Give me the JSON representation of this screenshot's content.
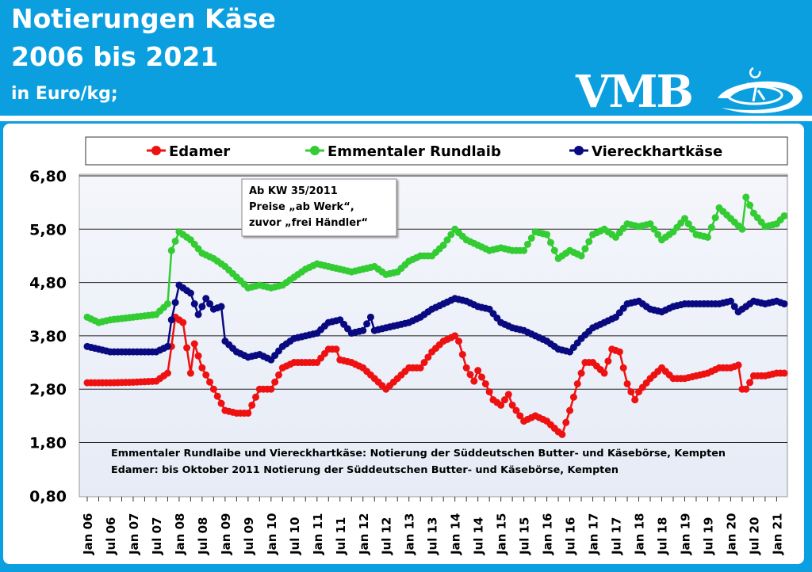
{
  "header": {
    "title_line1": "Notierungen  Käse",
    "title_line2": "2006 bis 2021",
    "unit": "in  Euro/kg;",
    "logo_text": "VMB"
  },
  "colors": {
    "header_bg": "#0b9fe0",
    "edamer": "#ee1111",
    "emmentaler": "#33cc33",
    "viereck": "#0a0a80",
    "plot_bg": "#eef1f8"
  },
  "chart_data": {
    "type": "line",
    "title": "Notierungen  Käse 2006 bis 2021",
    "ylabel": "in  Euro/kg;",
    "ylim": [
      0.8,
      6.8
    ],
    "yticks": [
      "0,80",
      "1,80",
      "2,80",
      "3,80",
      "4,80",
      "5,80",
      "6,80"
    ],
    "xticks": [
      "Jan 06",
      "Jul 06",
      "Jan 07",
      "Jul 07",
      "Jan 08",
      "Jul 08",
      "Jan 09",
      "Jul 09",
      "Jan 10",
      "Jul 10",
      "Jan 11",
      "Jul 11",
      "Jan 12",
      "Jul 12",
      "Jan 13",
      "Jul 13",
      "Jan 14",
      "Jul 14",
      "Jan 15",
      "Jul 15",
      "Jan 16",
      "Jul 16",
      "Jan 17",
      "Jul 17",
      "Jan 18",
      "Jul 18",
      "Jan 19",
      "Jul 19",
      "Jan 20",
      "Jul 20",
      "Jan 21"
    ],
    "grid": true,
    "legend_placement": "top",
    "annotation": [
      "Ab KW 35/2011",
      "Preise „ab Werk“,",
      "zuvor „frei Händler“"
    ],
    "footnote": [
      "Emmentaler Rundlaibe und Viereckhartkäse: Notierung der Süddeutschen Butter-  und Käsebörse, Kempten",
      "Edamer: bis Oktober 2011 Notierung der Süddeutschen Butter- und Käsebörse, Kempten"
    ],
    "series": [
      {
        "name": "Edamer",
        "color": "#ee1111",
        "points": [
          [
            "2006-01",
            2.92
          ],
          [
            "2006-07",
            2.92
          ],
          [
            "2007-01",
            2.93
          ],
          [
            "2007-07",
            2.95
          ],
          [
            "2007-10",
            3.1
          ],
          [
            "2007-11",
            3.6
          ],
          [
            "2007-12",
            4.15
          ],
          [
            "2008-02",
            4.05
          ],
          [
            "2008-04",
            3.1
          ],
          [
            "2008-05",
            3.65
          ],
          [
            "2008-07",
            3.2
          ],
          [
            "2008-10",
            2.8
          ],
          [
            "2009-01",
            2.4
          ],
          [
            "2009-04",
            2.35
          ],
          [
            "2009-07",
            2.35
          ],
          [
            "2009-10",
            2.8
          ],
          [
            "2010-01",
            2.8
          ],
          [
            "2010-04",
            3.2
          ],
          [
            "2010-07",
            3.3
          ],
          [
            "2011-01",
            3.3
          ],
          [
            "2011-04",
            3.55
          ],
          [
            "2011-06",
            3.55
          ],
          [
            "2011-07",
            3.35
          ],
          [
            "2011-10",
            3.3
          ],
          [
            "2012-01",
            3.2
          ],
          [
            "2012-04",
            3.0
          ],
          [
            "2012-07",
            2.8
          ],
          [
            "2012-10",
            3.0
          ],
          [
            "2013-01",
            3.2
          ],
          [
            "2013-04",
            3.2
          ],
          [
            "2013-07",
            3.5
          ],
          [
            "2013-10",
            3.7
          ],
          [
            "2014-01",
            3.8
          ],
          [
            "2014-02",
            3.7
          ],
          [
            "2014-04",
            3.2
          ],
          [
            "2014-06",
            2.95
          ],
          [
            "2014-07",
            3.15
          ],
          [
            "2014-09",
            2.9
          ],
          [
            "2014-11",
            2.6
          ],
          [
            "2015-01",
            2.5
          ],
          [
            "2015-03",
            2.7
          ],
          [
            "2015-04",
            2.5
          ],
          [
            "2015-07",
            2.2
          ],
          [
            "2015-10",
            2.3
          ],
          [
            "2016-01",
            2.2
          ],
          [
            "2016-04",
            2.0
          ],
          [
            "2016-05",
            1.95
          ],
          [
            "2016-07",
            2.4
          ],
          [
            "2016-09",
            2.9
          ],
          [
            "2016-11",
            3.3
          ],
          [
            "2017-01",
            3.3
          ],
          [
            "2017-04",
            3.1
          ],
          [
            "2017-06",
            3.55
          ],
          [
            "2017-08",
            3.5
          ],
          [
            "2017-10",
            2.9
          ],
          [
            "2017-12",
            2.6
          ],
          [
            "2018-01",
            2.75
          ],
          [
            "2018-04",
            3.0
          ],
          [
            "2018-07",
            3.2
          ],
          [
            "2018-10",
            3.0
          ],
          [
            "2019-01",
            3.0
          ],
          [
            "2019-04",
            3.05
          ],
          [
            "2019-07",
            3.1
          ],
          [
            "2019-10",
            3.2
          ],
          [
            "2020-01",
            3.2
          ],
          [
            "2020-03",
            3.25
          ],
          [
            "2020-04",
            2.8
          ],
          [
            "2020-05",
            2.8
          ],
          [
            "2020-07",
            3.05
          ],
          [
            "2020-10",
            3.05
          ],
          [
            "2021-01",
            3.1
          ],
          [
            "2021-03",
            3.1
          ]
        ]
      },
      {
        "name": "Emmentaler Rundlaib",
        "color": "#33cc33",
        "points": [
          [
            "2006-01",
            4.15
          ],
          [
            "2006-04",
            4.05
          ],
          [
            "2006-07",
            4.1
          ],
          [
            "2007-01",
            4.15
          ],
          [
            "2007-07",
            4.2
          ],
          [
            "2007-10",
            4.4
          ],
          [
            "2007-11",
            5.4
          ],
          [
            "2008-01",
            5.75
          ],
          [
            "2008-04",
            5.6
          ],
          [
            "2008-07",
            5.35
          ],
          [
            "2008-10",
            5.25
          ],
          [
            "2009-01",
            5.1
          ],
          [
            "2009-04",
            4.9
          ],
          [
            "2009-07",
            4.7
          ],
          [
            "2009-10",
            4.75
          ],
          [
            "2010-01",
            4.7
          ],
          [
            "2010-04",
            4.75
          ],
          [
            "2010-07",
            4.9
          ],
          [
            "2010-10",
            5.05
          ],
          [
            "2011-01",
            5.15
          ],
          [
            "2011-04",
            5.1
          ],
          [
            "2011-07",
            5.05
          ],
          [
            "2011-10",
            5.0
          ],
          [
            "2012-01",
            5.05
          ],
          [
            "2012-04",
            5.1
          ],
          [
            "2012-07",
            4.95
          ],
          [
            "2012-10",
            5.0
          ],
          [
            "2013-01",
            5.2
          ],
          [
            "2013-04",
            5.3
          ],
          [
            "2013-07",
            5.3
          ],
          [
            "2013-10",
            5.5
          ],
          [
            "2014-01",
            5.8
          ],
          [
            "2014-04",
            5.6
          ],
          [
            "2014-07",
            5.5
          ],
          [
            "2014-10",
            5.4
          ],
          [
            "2015-01",
            5.45
          ],
          [
            "2015-04",
            5.4
          ],
          [
            "2015-07",
            5.4
          ],
          [
            "2015-10",
            5.75
          ],
          [
            "2016-01",
            5.7
          ],
          [
            "2016-04",
            5.25
          ],
          [
            "2016-07",
            5.4
          ],
          [
            "2016-10",
            5.3
          ],
          [
            "2017-01",
            5.7
          ],
          [
            "2017-04",
            5.8
          ],
          [
            "2017-07",
            5.65
          ],
          [
            "2017-10",
            5.9
          ],
          [
            "2018-01",
            5.85
          ],
          [
            "2018-04",
            5.9
          ],
          [
            "2018-07",
            5.6
          ],
          [
            "2018-10",
            5.75
          ],
          [
            "2019-01",
            6.0
          ],
          [
            "2019-04",
            5.7
          ],
          [
            "2019-07",
            5.65
          ],
          [
            "2019-10",
            6.2
          ],
          [
            "2020-01",
            6.0
          ],
          [
            "2020-04",
            5.8
          ],
          [
            "2020-05",
            6.4
          ],
          [
            "2020-07",
            6.1
          ],
          [
            "2020-10",
            5.85
          ],
          [
            "2021-01",
            5.9
          ],
          [
            "2021-03",
            6.05
          ]
        ]
      },
      {
        "name": "Viereckhartkäse",
        "color": "#0a0a80",
        "points": [
          [
            "2006-01",
            3.6
          ],
          [
            "2006-07",
            3.5
          ],
          [
            "2007-01",
            3.5
          ],
          [
            "2007-07",
            3.5
          ],
          [
            "2007-10",
            3.6
          ],
          [
            "2007-11",
            4.1
          ],
          [
            "2008-01",
            4.75
          ],
          [
            "2008-04",
            4.6
          ],
          [
            "2008-06",
            4.2
          ],
          [
            "2008-08",
            4.5
          ],
          [
            "2008-10",
            4.3
          ],
          [
            "2008-12",
            4.35
          ],
          [
            "2009-01",
            3.7
          ],
          [
            "2009-04",
            3.5
          ],
          [
            "2009-07",
            3.4
          ],
          [
            "2009-10",
            3.45
          ],
          [
            "2010-01",
            3.35
          ],
          [
            "2010-04",
            3.6
          ],
          [
            "2010-07",
            3.75
          ],
          [
            "2010-10",
            3.8
          ],
          [
            "2011-01",
            3.85
          ],
          [
            "2011-04",
            4.05
          ],
          [
            "2011-07",
            4.1
          ],
          [
            "2011-10",
            3.85
          ],
          [
            "2012-01",
            3.9
          ],
          [
            "2012-03",
            4.15
          ],
          [
            "2012-04",
            3.9
          ],
          [
            "2012-07",
            3.95
          ],
          [
            "2012-10",
            4.0
          ],
          [
            "2013-01",
            4.05
          ],
          [
            "2013-04",
            4.15
          ],
          [
            "2013-07",
            4.3
          ],
          [
            "2013-10",
            4.4
          ],
          [
            "2014-01",
            4.5
          ],
          [
            "2014-04",
            4.45
          ],
          [
            "2014-07",
            4.35
          ],
          [
            "2014-10",
            4.3
          ],
          [
            "2015-01",
            4.05
          ],
          [
            "2015-04",
            3.95
          ],
          [
            "2015-07",
            3.9
          ],
          [
            "2015-10",
            3.8
          ],
          [
            "2016-01",
            3.7
          ],
          [
            "2016-04",
            3.55
          ],
          [
            "2016-07",
            3.5
          ],
          [
            "2016-10",
            3.75
          ],
          [
            "2017-01",
            3.95
          ],
          [
            "2017-04",
            4.05
          ],
          [
            "2017-07",
            4.15
          ],
          [
            "2017-10",
            4.4
          ],
          [
            "2018-01",
            4.45
          ],
          [
            "2018-04",
            4.3
          ],
          [
            "2018-07",
            4.25
          ],
          [
            "2018-10",
            4.35
          ],
          [
            "2019-01",
            4.4
          ],
          [
            "2019-04",
            4.4
          ],
          [
            "2019-07",
            4.4
          ],
          [
            "2019-10",
            4.4
          ],
          [
            "2020-01",
            4.45
          ],
          [
            "2020-03",
            4.25
          ],
          [
            "2020-07",
            4.45
          ],
          [
            "2020-10",
            4.4
          ],
          [
            "2021-01",
            4.45
          ],
          [
            "2021-03",
            4.4
          ]
        ]
      }
    ]
  }
}
